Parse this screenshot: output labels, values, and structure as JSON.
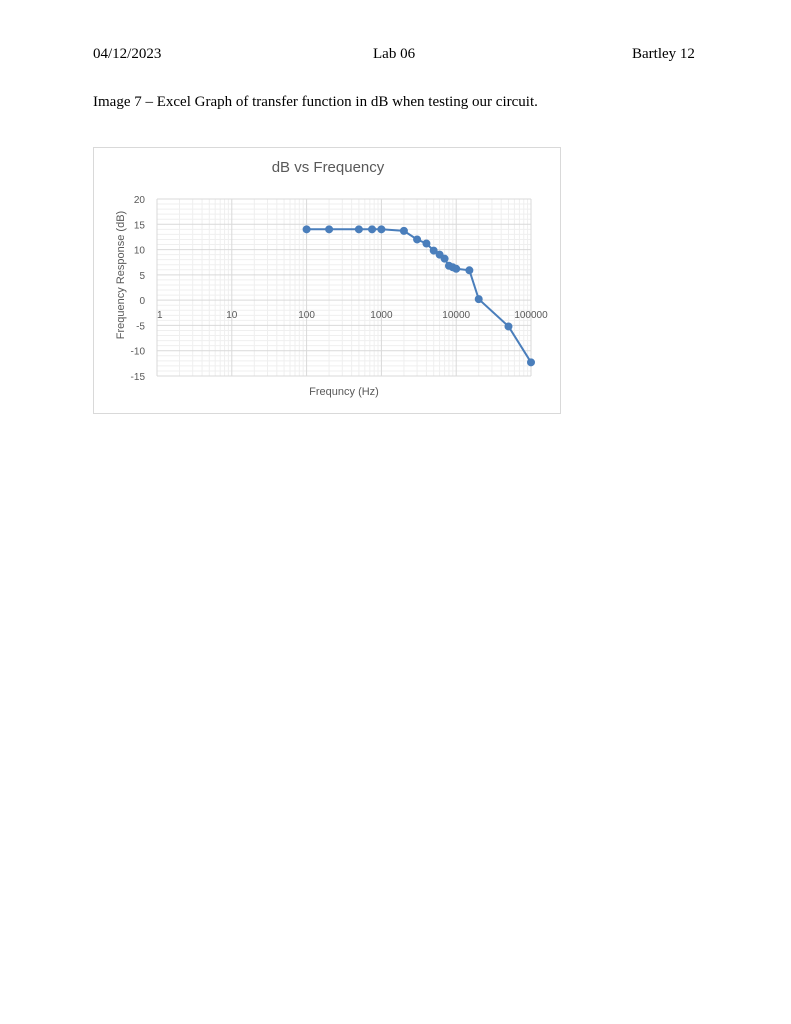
{
  "header": {
    "date": "04/12/2023",
    "lab": "Lab 06",
    "page": "Bartley 12"
  },
  "caption": "Image 7 – Excel Graph of transfer function in dB when testing our circuit.",
  "chart_data": {
    "type": "scatter",
    "title": "dB vs Frequency",
    "xlabel": "Frequncy (Hz)",
    "ylabel": "Frequency Response (dB)",
    "x_scale": "log",
    "xlim": [
      1,
      100000
    ],
    "ylim": [
      -15,
      20
    ],
    "x_ticks": [
      "1",
      "10",
      "100",
      "1000",
      "10000",
      "100000"
    ],
    "y_ticks": [
      "20",
      "15",
      "10",
      "5",
      "0",
      "-5",
      "-10",
      "-15"
    ],
    "grid": true,
    "legend": "none",
    "series_color": "#4a7ebb",
    "series": [
      {
        "x": [
          100,
          200,
          500,
          750,
          1000,
          2000,
          3000,
          4000,
          5000,
          6000,
          7000,
          8000,
          9000,
          10000,
          15000,
          20000,
          50000,
          100000
        ],
        "y": [
          14,
          14,
          14,
          14,
          14,
          13.7,
          12,
          11.2,
          9.8,
          9,
          8.2,
          6.8,
          6.5,
          6.2,
          5.9,
          0.2,
          -5.2,
          -12.3
        ]
      }
    ]
  }
}
